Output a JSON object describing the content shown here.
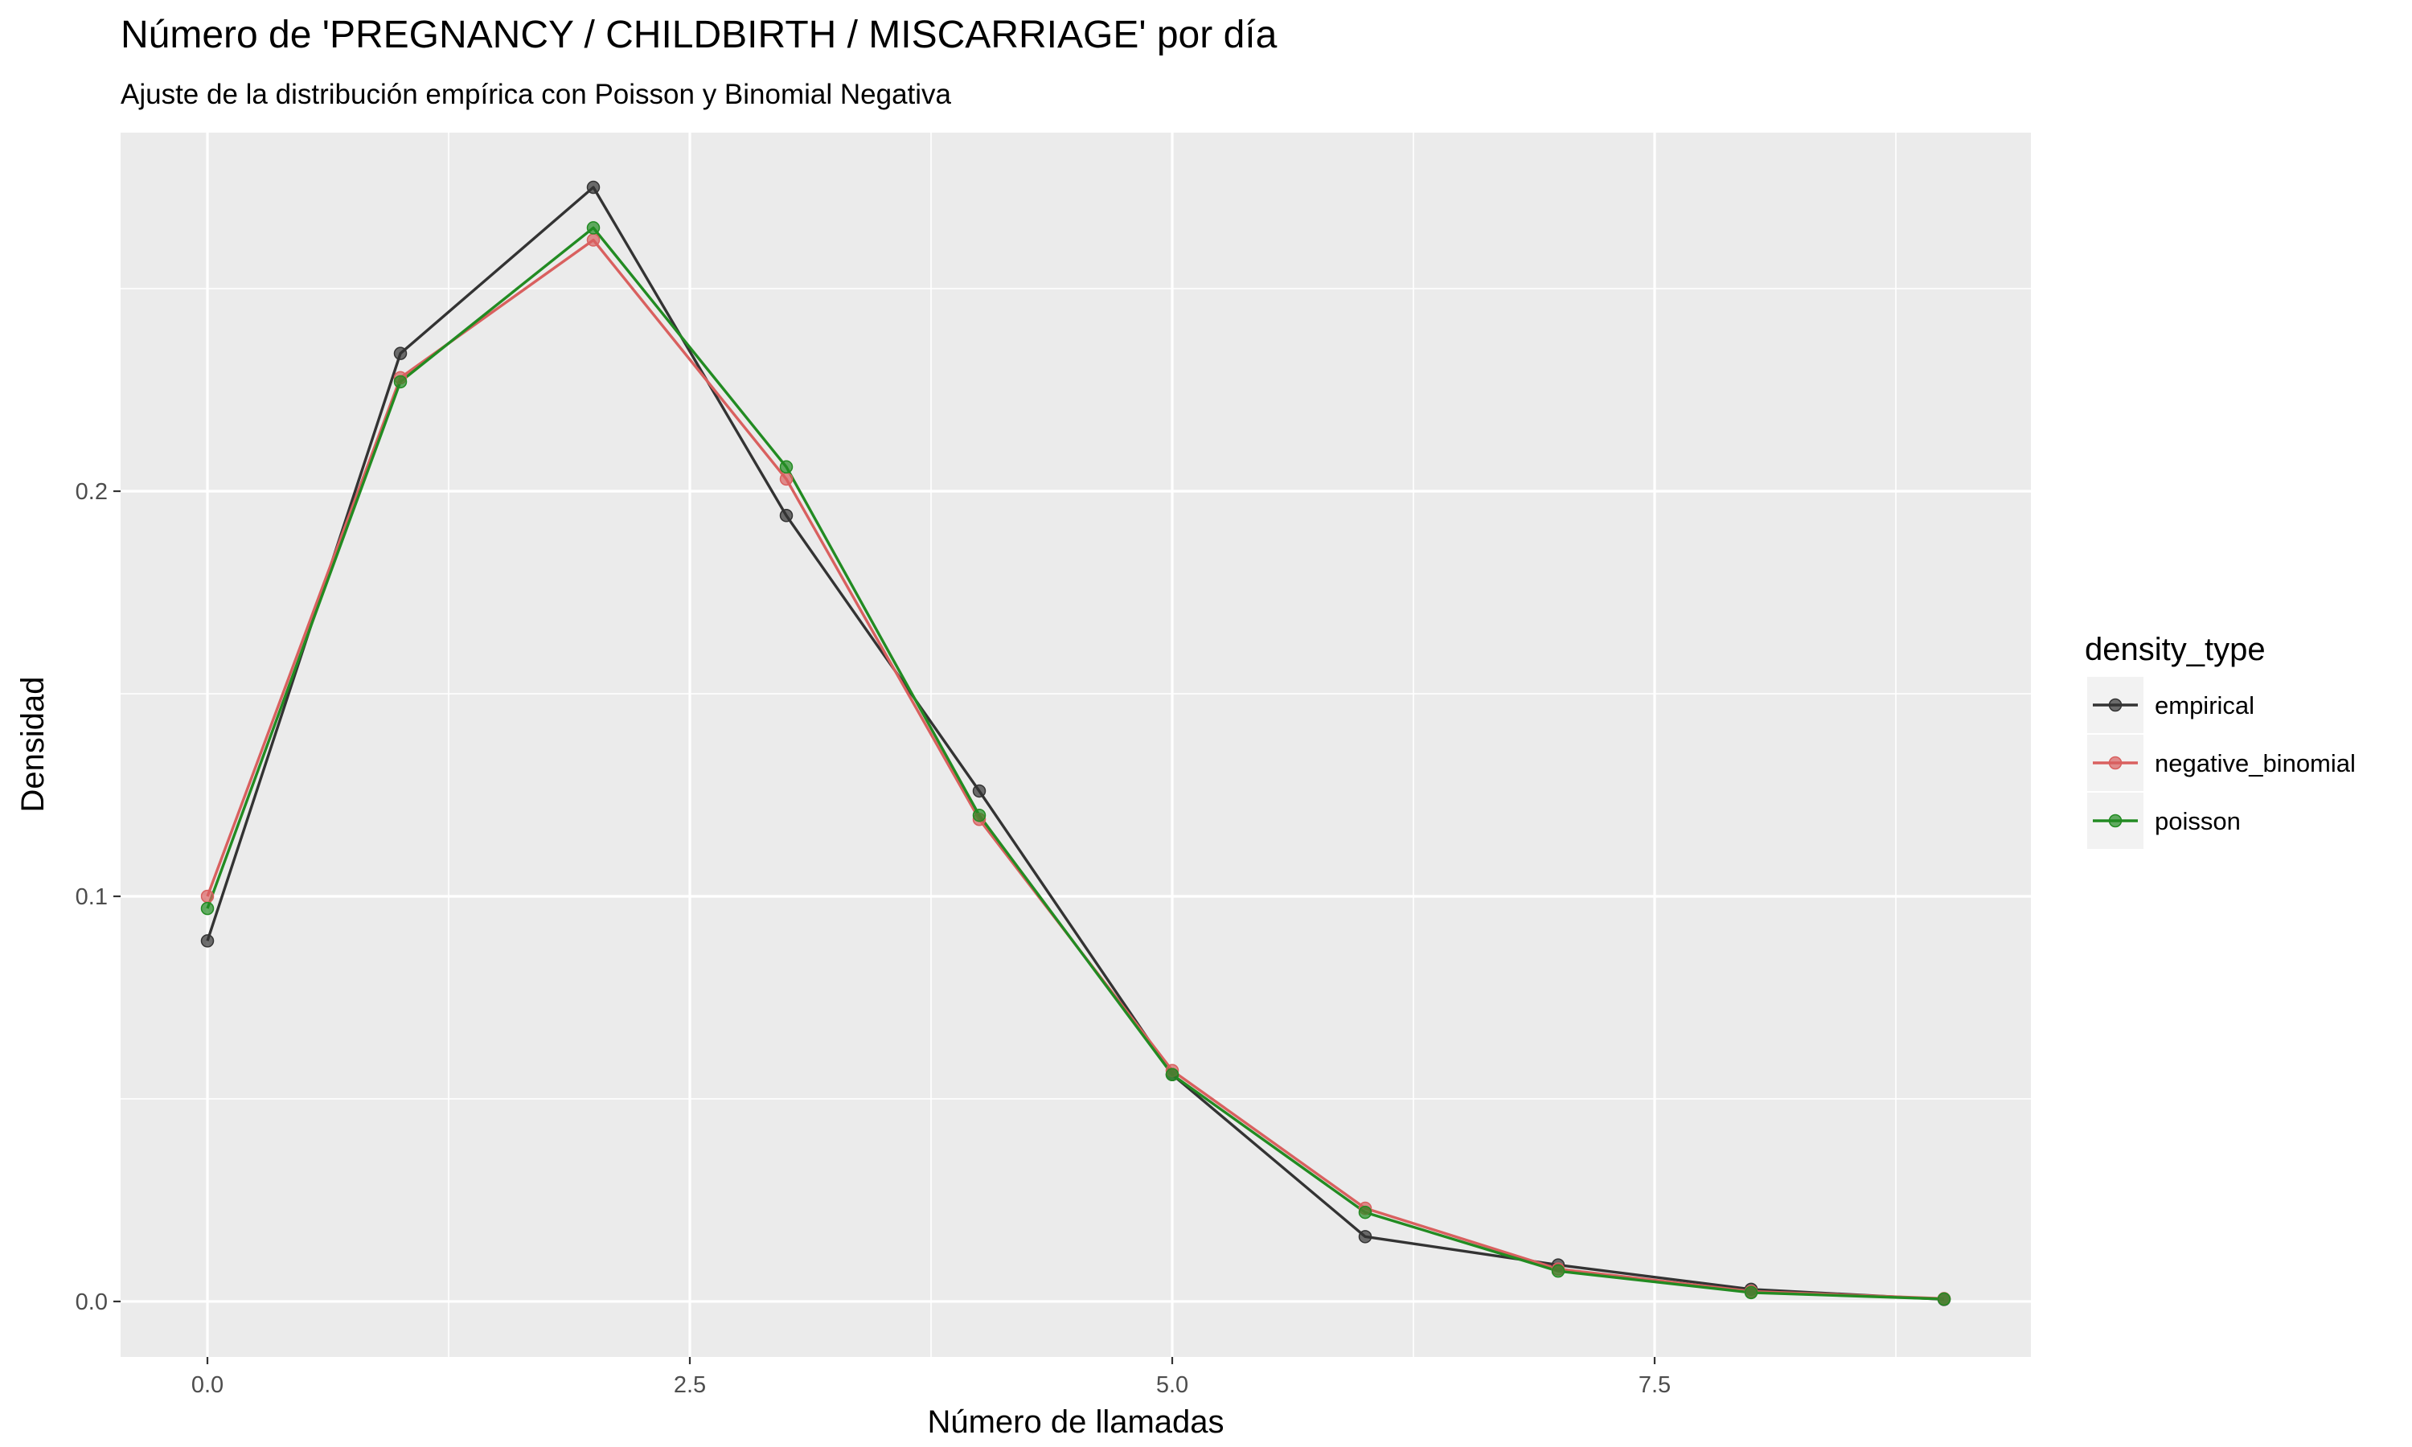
{
  "title": "Número de 'PREGNANCY / CHILDBIRTH / MISCARRIAGE' por día",
  "subtitle": "Ajuste de la distribución empírica con Poisson y Binomial Negativa",
  "chart_data": {
    "type": "line",
    "title": "Número de 'PREGNANCY / CHILDBIRTH / MISCARRIAGE' por día",
    "subtitle": "Ajuste de la distribución empírica con Poisson y Binomial Negativa",
    "xlabel": "Número de llamadas",
    "ylabel": "Densidad",
    "xlim": [
      -0.45,
      9.45
    ],
    "ylim": [
      -0.0137,
      0.2885
    ],
    "x_ticks": [
      0.0,
      2.5,
      5.0,
      7.5
    ],
    "x_tick_labels": [
      "0.0",
      "2.5",
      "5.0",
      "7.5"
    ],
    "y_ticks": [
      0.0,
      0.1,
      0.2
    ],
    "y_tick_labels": [
      "0.0",
      "0.1",
      "0.2"
    ],
    "grid": true,
    "legend": {
      "title": "density_type",
      "position": "right"
    },
    "x": [
      0,
      1,
      2,
      3,
      4,
      5,
      6,
      7,
      8,
      9
    ],
    "series": [
      {
        "name": "empirical",
        "color": "#333333",
        "values": [
          0.089,
          0.234,
          0.275,
          0.194,
          0.126,
          0.056,
          0.016,
          0.009,
          0.003,
          0.0005
        ]
      },
      {
        "name": "negative_binomial",
        "color": "#D9605F",
        "values": [
          0.1,
          0.228,
          0.262,
          0.203,
          0.119,
          0.057,
          0.023,
          0.008,
          0.0025,
          0.0007
        ]
      },
      {
        "name": "poisson",
        "color": "#228B22",
        "values": [
          0.097,
          0.227,
          0.265,
          0.206,
          0.12,
          0.056,
          0.022,
          0.0075,
          0.0022,
          0.0006
        ]
      }
    ]
  }
}
